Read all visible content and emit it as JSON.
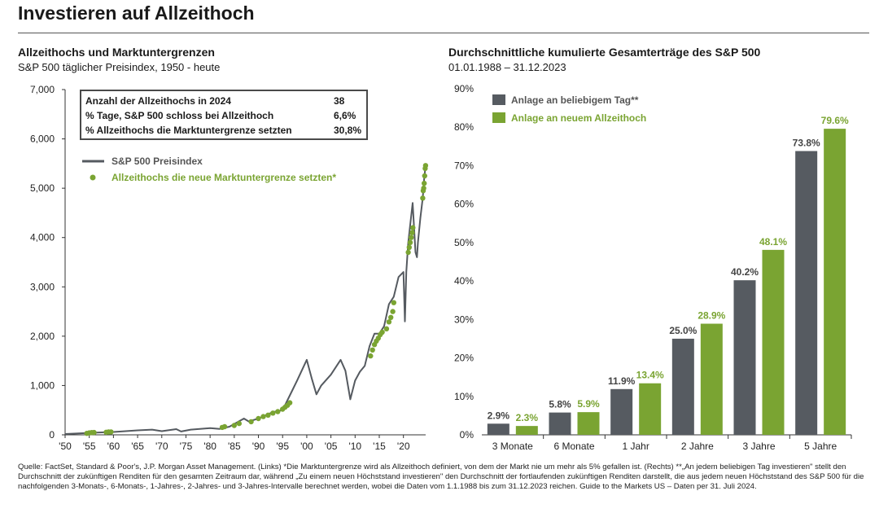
{
  "page": {
    "title": "Investieren auf Allzeithoch"
  },
  "left": {
    "title": "Allzeithochs und Marktuntergrenzen",
    "subtitle": "S&P 500 täglicher Preisindex, 1950 - heute",
    "stats": [
      {
        "label": "Anzahl der Allzeithochs in 2024",
        "value": "38"
      },
      {
        "label": "% Tage, S&P 500 schloss bei Allzeithoch",
        "value": "6,6%"
      },
      {
        "label": "% Allzeithochs die Marktuntergrenze setzten",
        "value": "30,8%"
      }
    ]
  },
  "right": {
    "title": "Durchschnittliche kumulierte Gesamterträge des S&P 500",
    "subtitle": "01.01.1988 – 31.12.2023"
  },
  "colors": {
    "price_line": "#555a60",
    "green": "#7aa432",
    "gray_bar": "#565b61"
  },
  "chart_data": [
    {
      "type": "line",
      "series": [
        {
          "name": "S&P 500 Preisindex",
          "x": [
            1950,
            1955,
            1960,
            1965,
            1968,
            1970,
            1973,
            1974,
            1976,
            1980,
            1982,
            1984,
            1987,
            1988,
            1990,
            1993,
            1995,
            1997,
            1998,
            2000,
            2001,
            2002,
            2003,
            2005,
            2007,
            2008,
            2009,
            2010,
            2011,
            2012,
            2013,
            2014,
            2015,
            2016,
            2017,
            2018,
            2019,
            2020,
            2020.3,
            2020.6,
            2021,
            2021.9,
            2022.5,
            2022.8,
            2023,
            2023.5,
            2024,
            2024.3,
            2024.58
          ],
          "y": [
            17,
            40,
            57,
            90,
            105,
            75,
            115,
            68,
            105,
            135,
            120,
            165,
            330,
            270,
            330,
            460,
            500,
            900,
            1100,
            1520,
            1150,
            820,
            1000,
            1220,
            1520,
            1300,
            720,
            1100,
            1280,
            1400,
            1800,
            2050,
            2050,
            2200,
            2650,
            2800,
            3200,
            3300,
            2300,
            3300,
            3900,
            4700,
            3700,
            3600,
            3900,
            4400,
            4800,
            5200,
            5460
          ]
        },
        {
          "name": "Allzeithochs die neue Marktuntergrenze setzten",
          "x": [
            1954.5,
            1955,
            1955.5,
            1956,
            1958.5,
            1959,
            1959.5,
            1982.5,
            1983,
            1985,
            1986,
            1988.5,
            1990,
            1991,
            1992,
            1993,
            1994,
            1995,
            1995.5,
            1996,
            1996.5,
            2013.2,
            2013.6,
            2014,
            2014.4,
            2014.8,
            2015.2,
            2015.6,
            2016.5,
            2017,
            2017.4,
            2017.8,
            2018,
            2021,
            2021.2,
            2021.4,
            2021.6,
            2021.8,
            2021.95,
            2024,
            2024.1,
            2024.2,
            2024.3,
            2024.4,
            2024.5,
            2024.58
          ],
          "y": [
            30,
            40,
            46,
            48,
            53,
            58,
            60,
            150,
            165,
            190,
            230,
            265,
            330,
            370,
            400,
            440,
            470,
            520,
            560,
            600,
            650,
            1600,
            1720,
            1830,
            1900,
            1960,
            2030,
            2080,
            2150,
            2290,
            2380,
            2500,
            2680,
            3700,
            3800,
            3900,
            4000,
            4100,
            4200,
            4800,
            4950,
            5000,
            5100,
            5250,
            5400,
            5460
          ]
        }
      ],
      "xticks": [
        "'50",
        "'55",
        "'60",
        "'65",
        "'70",
        "'75",
        "'80",
        "'85",
        "'90",
        "'95",
        "'00",
        "'05",
        "'10",
        "'15",
        "'20"
      ],
      "yticks": [
        "0",
        "1,000",
        "2,000",
        "3,000",
        "4,000",
        "5,000",
        "6,000",
        "7,000"
      ],
      "ylim": [
        0,
        7000
      ],
      "xlim": [
        1950,
        2024.6
      ]
    },
    {
      "type": "bar",
      "categories": [
        "3 Monate",
        "6 Monate",
        "1 Jahr",
        "2 Jahre",
        "3 Jahre",
        "5 Jahre"
      ],
      "series": [
        {
          "name": "Anlage an beliebigem Tag**",
          "values": [
            2.9,
            5.8,
            11.9,
            25.0,
            40.2,
            73.8
          ],
          "labels": [
            "2.9%",
            "5.8%",
            "11.9%",
            "25.0%",
            "40.2%",
            "73.8%"
          ]
        },
        {
          "name": "Anlage an neuem Allzeithoch",
          "values": [
            2.3,
            5.9,
            13.4,
            28.9,
            48.1,
            79.6
          ],
          "labels": [
            "2.3%",
            "5.9%",
            "13.4%",
            "28.9%",
            "48.1%",
            "79.6%"
          ]
        }
      ],
      "yticks": [
        "0%",
        "10%",
        "20%",
        "30%",
        "40%",
        "50%",
        "60%",
        "70%",
        "80%",
        "90%"
      ],
      "ylim": [
        0,
        90
      ]
    }
  ],
  "footnote": "Quelle: FactSet, Standard & Poor's, J.P. Morgan Asset Management. (Links) *Die Marktuntergrenze wird als Allzeithoch definiert, von dem der Markt nie um mehr als 5% gefallen ist. (Rechts) **„An jedem beliebigen Tag investieren\" stellt den Durchschnitt der zukünftigen Renditen für den gesamten Zeitraum dar, während „Zu einem neuen Höchststand investieren\" den Durchschnitt der fortlaufenden zukünftigen Renditen darstellt, die aus jedem neuen Höchststand des S&P 500 für die nachfolgenden 3-Monats-, 6-Monats-, 1-Jahres-, 2-Jahres- und 3-Jahres-Intervalle berechnet werden, wobei die Daten vom 1.1.1988 bis zum 31.12.2023 reichen. Guide to the Markets US – Daten per 31. Juli 2024."
}
